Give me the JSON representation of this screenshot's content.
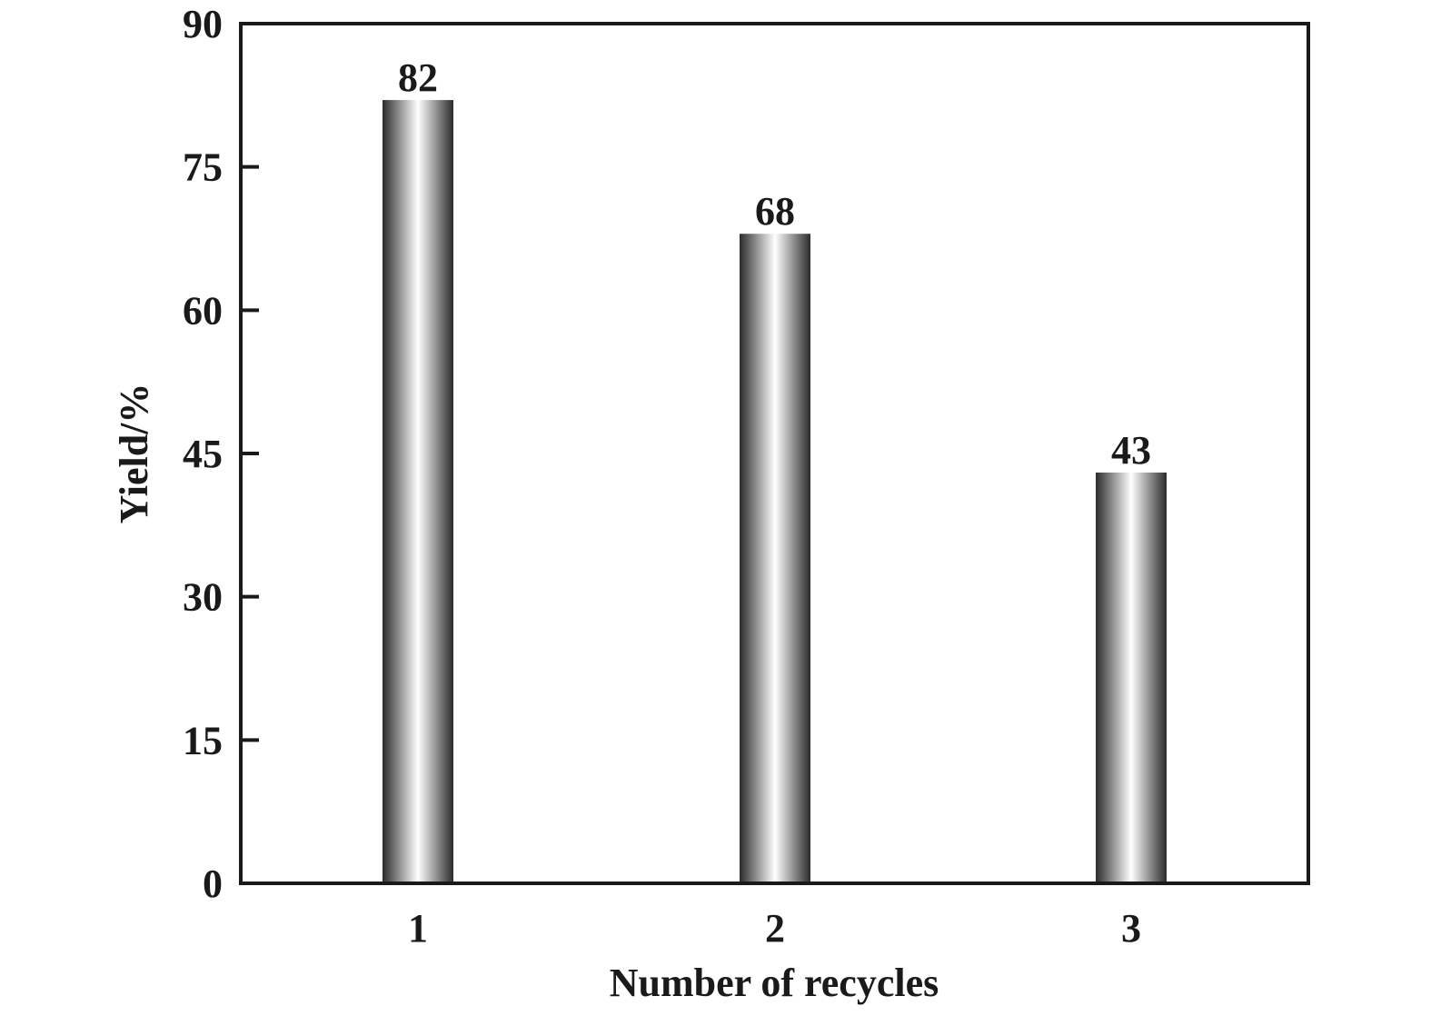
{
  "chart_data": {
    "type": "bar",
    "categories": [
      "1",
      "2",
      "3"
    ],
    "values": [
      82,
      68,
      43
    ],
    "data_labels": [
      "82",
      "68",
      "43"
    ],
    "xlabel": "Number of recycles",
    "ylabel": "Yield/%",
    "ylim": [
      0,
      90
    ],
    "yticks": [
      0,
      15,
      30,
      45,
      60,
      75,
      90
    ],
    "grid": false,
    "legend": "none",
    "colors": {
      "bar_dark": "#2b2b2b",
      "bar_light": "#ffffff",
      "axis": "#1a1a1a"
    }
  }
}
